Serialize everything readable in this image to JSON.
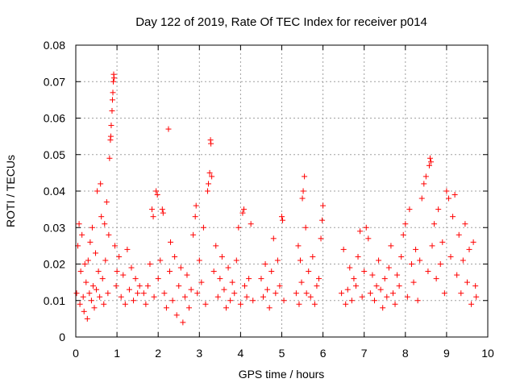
{
  "chart_data": {
    "type": "scatter",
    "title": "Day 122 of 2019, Rate Of TEC Index for receiver p014",
    "xlabel": "GPS time / hours",
    "ylabel": "ROTI / TECUs",
    "xlim": [
      0,
      10
    ],
    "ylim": [
      0,
      0.08
    ],
    "x_ticks": [
      0,
      1,
      2,
      3,
      4,
      5,
      6,
      7,
      8,
      9,
      10
    ],
    "y_ticks": [
      0,
      0.01,
      0.02,
      0.03,
      0.04,
      0.05,
      0.06,
      0.07,
      0.08
    ],
    "x_tick_labels": [
      "0",
      "1",
      "2",
      "3",
      "4",
      "5",
      "6",
      "7",
      "8",
      "9",
      "10"
    ],
    "y_tick_labels": [
      "0",
      "0.01",
      "0.02",
      "0.03",
      "0.04",
      "0.05",
      "0.06",
      "0.07",
      "0.08"
    ],
    "grid": true,
    "marker": "+",
    "series": [
      {
        "name": "ROTI",
        "color": "#ff0000",
        "points": [
          [
            0.02,
            0.012
          ],
          [
            0.05,
            0.025
          ],
          [
            0.08,
            0.031
          ],
          [
            0.1,
            0.009
          ],
          [
            0.12,
            0.018
          ],
          [
            0.15,
            0.028
          ],
          [
            0.18,
            0.011
          ],
          [
            0.2,
            0.007
          ],
          [
            0.22,
            0.02
          ],
          [
            0.25,
            0.015
          ],
          [
            0.28,
            0.005
          ],
          [
            0.3,
            0.021
          ],
          [
            0.33,
            0.012
          ],
          [
            0.35,
            0.026
          ],
          [
            0.38,
            0.01
          ],
          [
            0.4,
            0.03
          ],
          [
            0.42,
            0.014
          ],
          [
            0.45,
            0.008
          ],
          [
            0.48,
            0.023
          ],
          [
            0.5,
            0.013
          ],
          [
            0.52,
            0.04
          ],
          [
            0.55,
            0.018
          ],
          [
            0.58,
            0.011
          ],
          [
            0.6,
            0.042
          ],
          [
            0.62,
            0.033
          ],
          [
            0.65,
            0.016
          ],
          [
            0.68,
            0.009
          ],
          [
            0.7,
            0.031
          ],
          [
            0.72,
            0.021
          ],
          [
            0.75,
            0.037
          ],
          [
            0.78,
            0.012
          ],
          [
            0.8,
            0.028
          ],
          [
            0.82,
            0.049
          ],
          [
            0.84,
            0.054
          ],
          [
            0.85,
            0.055
          ],
          [
            0.86,
            0.058
          ],
          [
            0.88,
            0.062
          ],
          [
            0.89,
            0.065
          ],
          [
            0.9,
            0.067
          ],
          [
            0.91,
            0.07
          ],
          [
            0.92,
            0.072
          ],
          [
            0.93,
            0.071
          ],
          [
            0.95,
            0.025
          ],
          [
            0.98,
            0.014
          ],
          [
            1.0,
            0.018
          ],
          [
            1.05,
            0.022
          ],
          [
            1.1,
            0.011
          ],
          [
            1.15,
            0.017
          ],
          [
            1.2,
            0.009
          ],
          [
            1.25,
            0.024
          ],
          [
            1.3,
            0.013
          ],
          [
            1.35,
            0.019
          ],
          [
            1.4,
            0.01
          ],
          [
            1.45,
            0.016
          ],
          [
            1.5,
            0.012
          ],
          [
            1.55,
            0.014
          ],
          [
            1.65,
            0.012
          ],
          [
            1.7,
            0.009
          ],
          [
            1.75,
            0.014
          ],
          [
            1.8,
            0.02
          ],
          [
            1.85,
            0.035
          ],
          [
            1.88,
            0.033
          ],
          [
            1.9,
            0.011
          ],
          [
            1.95,
            0.04
          ],
          [
            1.98,
            0.039
          ],
          [
            2.0,
            0.016
          ],
          [
            2.05,
            0.021
          ],
          [
            2.1,
            0.035
          ],
          [
            2.12,
            0.034
          ],
          [
            2.15,
            0.012
          ],
          [
            2.2,
            0.008
          ],
          [
            2.25,
            0.057
          ],
          [
            2.28,
            0.018
          ],
          [
            2.3,
            0.026
          ],
          [
            2.35,
            0.01
          ],
          [
            2.4,
            0.022
          ],
          [
            2.45,
            0.006
          ],
          [
            2.5,
            0.014
          ],
          [
            2.55,
            0.019
          ],
          [
            2.6,
            0.004
          ],
          [
            2.65,
            0.011
          ],
          [
            2.7,
            0.017
          ],
          [
            2.75,
            0.008
          ],
          [
            2.8,
            0.013
          ],
          [
            2.85,
            0.028
          ],
          [
            2.9,
            0.033
          ],
          [
            2.92,
            0.036
          ],
          [
            2.95,
            0.012
          ],
          [
            3.0,
            0.021
          ],
          [
            3.05,
            0.015
          ],
          [
            3.1,
            0.03
          ],
          [
            3.15,
            0.009
          ],
          [
            3.2,
            0.04
          ],
          [
            3.22,
            0.042
          ],
          [
            3.25,
            0.045
          ],
          [
            3.27,
            0.054
          ],
          [
            3.28,
            0.053
          ],
          [
            3.3,
            0.044
          ],
          [
            3.35,
            0.018
          ],
          [
            3.4,
            0.025
          ],
          [
            3.45,
            0.011
          ],
          [
            3.5,
            0.016
          ],
          [
            3.55,
            0.022
          ],
          [
            3.6,
            0.013
          ],
          [
            3.65,
            0.008
          ],
          [
            3.7,
            0.019
          ],
          [
            3.75,
            0.01
          ],
          [
            3.8,
            0.015
          ],
          [
            3.85,
            0.012
          ],
          [
            3.9,
            0.021
          ],
          [
            3.95,
            0.03
          ],
          [
            4.0,
            0.009
          ],
          [
            4.05,
            0.034
          ],
          [
            4.08,
            0.035
          ],
          [
            4.1,
            0.014
          ],
          [
            4.15,
            0.011
          ],
          [
            4.2,
            0.016
          ],
          [
            4.25,
            0.031
          ],
          [
            4.3,
            0.01
          ],
          [
            4.5,
            0.016
          ],
          [
            4.55,
            0.011
          ],
          [
            4.6,
            0.02
          ],
          [
            4.65,
            0.013
          ],
          [
            4.7,
            0.008
          ],
          [
            4.75,
            0.018
          ],
          [
            4.8,
            0.027
          ],
          [
            4.85,
            0.012
          ],
          [
            4.9,
            0.021
          ],
          [
            4.95,
            0.014
          ],
          [
            5.0,
            0.033
          ],
          [
            5.02,
            0.032
          ],
          [
            5.05,
            0.01
          ],
          [
            5.35,
            0.012
          ],
          [
            5.4,
            0.025
          ],
          [
            5.42,
            0.009
          ],
          [
            5.45,
            0.021
          ],
          [
            5.48,
            0.015
          ],
          [
            5.5,
            0.038
          ],
          [
            5.52,
            0.04
          ],
          [
            5.55,
            0.044
          ],
          [
            5.58,
            0.03
          ],
          [
            5.6,
            0.012
          ],
          [
            5.65,
            0.018
          ],
          [
            5.7,
            0.011
          ],
          [
            5.75,
            0.022
          ],
          [
            5.8,
            0.009
          ],
          [
            5.85,
            0.014
          ],
          [
            5.9,
            0.016
          ],
          [
            5.95,
            0.027
          ],
          [
            5.98,
            0.032
          ],
          [
            6.0,
            0.036
          ],
          [
            6.45,
            0.012
          ],
          [
            6.5,
            0.024
          ],
          [
            6.55,
            0.009
          ],
          [
            6.6,
            0.013
          ],
          [
            6.65,
            0.019
          ],
          [
            6.7,
            0.01
          ],
          [
            6.75,
            0.016
          ],
          [
            6.8,
            0.014
          ],
          [
            6.85,
            0.022
          ],
          [
            6.9,
            0.029
          ],
          [
            6.95,
            0.011
          ],
          [
            7.0,
            0.018
          ],
          [
            7.05,
            0.03
          ],
          [
            7.1,
            0.027
          ],
          [
            7.15,
            0.012
          ],
          [
            7.2,
            0.017
          ],
          [
            7.25,
            0.01
          ],
          [
            7.3,
            0.014
          ],
          [
            7.35,
            0.021
          ],
          [
            7.4,
            0.013
          ],
          [
            7.45,
            0.008
          ],
          [
            7.5,
            0.016
          ],
          [
            7.55,
            0.011
          ],
          [
            7.6,
            0.019
          ],
          [
            7.65,
            0.025
          ],
          [
            7.7,
            0.012
          ],
          [
            7.75,
            0.009
          ],
          [
            7.8,
            0.017
          ],
          [
            7.85,
            0.014
          ],
          [
            7.9,
            0.022
          ],
          [
            7.95,
            0.028
          ],
          [
            8.0,
            0.031
          ],
          [
            8.05,
            0.011
          ],
          [
            8.1,
            0.035
          ],
          [
            8.15,
            0.02
          ],
          [
            8.2,
            0.015
          ],
          [
            8.25,
            0.024
          ],
          [
            8.3,
            0.01
          ],
          [
            8.35,
            0.021
          ],
          [
            8.4,
            0.038
          ],
          [
            8.45,
            0.042
          ],
          [
            8.5,
            0.044
          ],
          [
            8.55,
            0.018
          ],
          [
            8.58,
            0.047
          ],
          [
            8.6,
            0.049
          ],
          [
            8.62,
            0.048
          ],
          [
            8.65,
            0.025
          ],
          [
            8.7,
            0.031
          ],
          [
            8.75,
            0.016
          ],
          [
            8.8,
            0.035
          ],
          [
            8.85,
            0.02
          ],
          [
            8.9,
            0.026
          ],
          [
            8.95,
            0.012
          ],
          [
            9.0,
            0.04
          ],
          [
            9.05,
            0.038
          ],
          [
            9.1,
            0.022
          ],
          [
            9.15,
            0.033
          ],
          [
            9.2,
            0.039
          ],
          [
            9.25,
            0.017
          ],
          [
            9.3,
            0.028
          ],
          [
            9.35,
            0.012
          ],
          [
            9.4,
            0.021
          ],
          [
            9.45,
            0.031
          ],
          [
            9.5,
            0.015
          ],
          [
            9.55,
            0.024
          ],
          [
            9.6,
            0.009
          ],
          [
            9.65,
            0.026
          ],
          [
            9.7,
            0.014
          ],
          [
            9.72,
            0.011
          ]
        ]
      }
    ]
  }
}
